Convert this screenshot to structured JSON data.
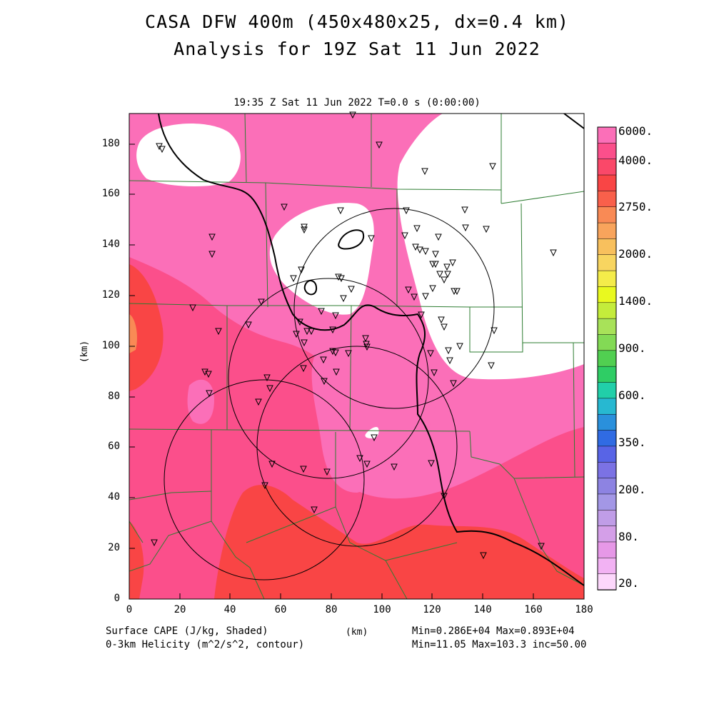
{
  "title_line1": "CASA DFW 400m (450x480x25, dx=0.4 km)",
  "title_line2": "Analysis for 19Z Sat 11 Jun 2022",
  "valid_time": "19:35 Z Sat 11 Jun 2022   T=0.0 s (0:00:00)",
  "axes": {
    "xlabel": "(km)",
    "ylabel": "(km)",
    "xticks": [
      "0",
      "20",
      "40",
      "60",
      "80",
      "100",
      "120",
      "140",
      "160",
      "180"
    ],
    "yticks": [
      "0",
      "20",
      "40",
      "60",
      "80",
      "100",
      "120",
      "140",
      "160",
      "180"
    ],
    "xlim": [
      0,
      180
    ],
    "ylim": [
      0,
      192
    ]
  },
  "footer": {
    "field1": "Surface CAPE (J/kg, Shaded)",
    "field2": "0-3km Helicity (m^2/s^2, contour)",
    "units": "(km)",
    "stats1": "Min=0.286E+04  Max=0.893E+04",
    "stats2": "Min=11.05  Max=103.3  inc=50.00"
  },
  "colorbar": {
    "labels": [
      "6000.",
      "4000.",
      "2750.",
      "2000.",
      "1400.",
      "900.",
      "600.",
      "350.",
      "200.",
      "80.",
      "20."
    ],
    "colors": [
      "#fb6fb8",
      "#fb4f8b",
      "#fa4869",
      "#f94545",
      "#f9604b",
      "#f98a55",
      "#f8a45c",
      "#f8c05d",
      "#f8d560",
      "#f4ec4a",
      "#e9f91f",
      "#c4ec3b",
      "#a8e259",
      "#83da55",
      "#51cf51",
      "#2fcd65",
      "#21cfa9",
      "#27b8d1",
      "#2a90dc",
      "#306be3",
      "#5864e6",
      "#7b72e4",
      "#8d83e2",
      "#a397e6",
      "#c09de7",
      "#d49fe8",
      "#e698e7",
      "#f2b2f3",
      "#fcd7fb"
    ]
  },
  "map_colors": {
    "cape_high": "#fb6fb8",
    "cape_4000": "#fb4f8b",
    "cape_3500": "#f94545",
    "cape_2750": "#f98a55",
    "low_cape": "#ffffff",
    "county_lines": "#2e7d32",
    "helicity_contours": "#000000"
  },
  "map_features": {
    "radar_rings": "circles",
    "station_markers": "inverted-triangle"
  }
}
